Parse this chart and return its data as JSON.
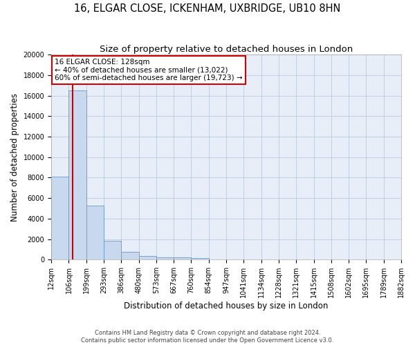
{
  "title": "16, ELGAR CLOSE, ICKENHAM, UXBRIDGE, UB10 8HN",
  "subtitle": "Size of property relative to detached houses in London",
  "xlabel": "Distribution of detached houses by size in London",
  "ylabel": "Number of detached properties",
  "bin_edges": [
    12,
    106,
    199,
    293,
    386,
    480,
    573,
    667,
    760,
    854,
    947,
    1041,
    1134,
    1228,
    1321,
    1415,
    1508,
    1602,
    1695,
    1789,
    1882
  ],
  "bar_heights": [
    8100,
    16500,
    5300,
    1850,
    750,
    350,
    250,
    200,
    150,
    0,
    0,
    0,
    0,
    0,
    0,
    0,
    0,
    0,
    0,
    0
  ],
  "bar_color": "#c8d8ee",
  "bar_edgecolor": "#6699cc",
  "property_line_x": 128,
  "annotation_text_line1": "16 ELGAR CLOSE: 128sqm",
  "annotation_text_line2": "← 40% of detached houses are smaller (13,022)",
  "annotation_text_line3": "60% of semi-detached houses are larger (19,723) →",
  "annotation_box_facecolor": "#ffffff",
  "annotation_box_edgecolor": "#cc0000",
  "red_line_color": "#cc0000",
  "grid_color": "#c0cfe0",
  "plot_bg_color": "#e8eef8",
  "fig_bg_color": "#ffffff",
  "ylim": [
    0,
    20000
  ],
  "yticks": [
    0,
    2000,
    4000,
    6000,
    8000,
    10000,
    12000,
    14000,
    16000,
    18000,
    20000
  ],
  "tick_labels": [
    "12sqm",
    "106sqm",
    "199sqm",
    "293sqm",
    "386sqm",
    "480sqm",
    "573sqm",
    "667sqm",
    "760sqm",
    "854sqm",
    "947sqm",
    "1041sqm",
    "1134sqm",
    "1228sqm",
    "1321sqm",
    "1415sqm",
    "1508sqm",
    "1602sqm",
    "1695sqm",
    "1789sqm",
    "1882sqm"
  ],
  "footer_line1": "Contains HM Land Registry data © Crown copyright and database right 2024.",
  "footer_line2": "Contains public sector information licensed under the Open Government Licence v3.0.",
  "title_fontsize": 10.5,
  "subtitle_fontsize": 9.5,
  "axis_label_fontsize": 8.5,
  "tick_fontsize": 7,
  "annotation_fontsize": 7.5,
  "footer_fontsize": 6
}
